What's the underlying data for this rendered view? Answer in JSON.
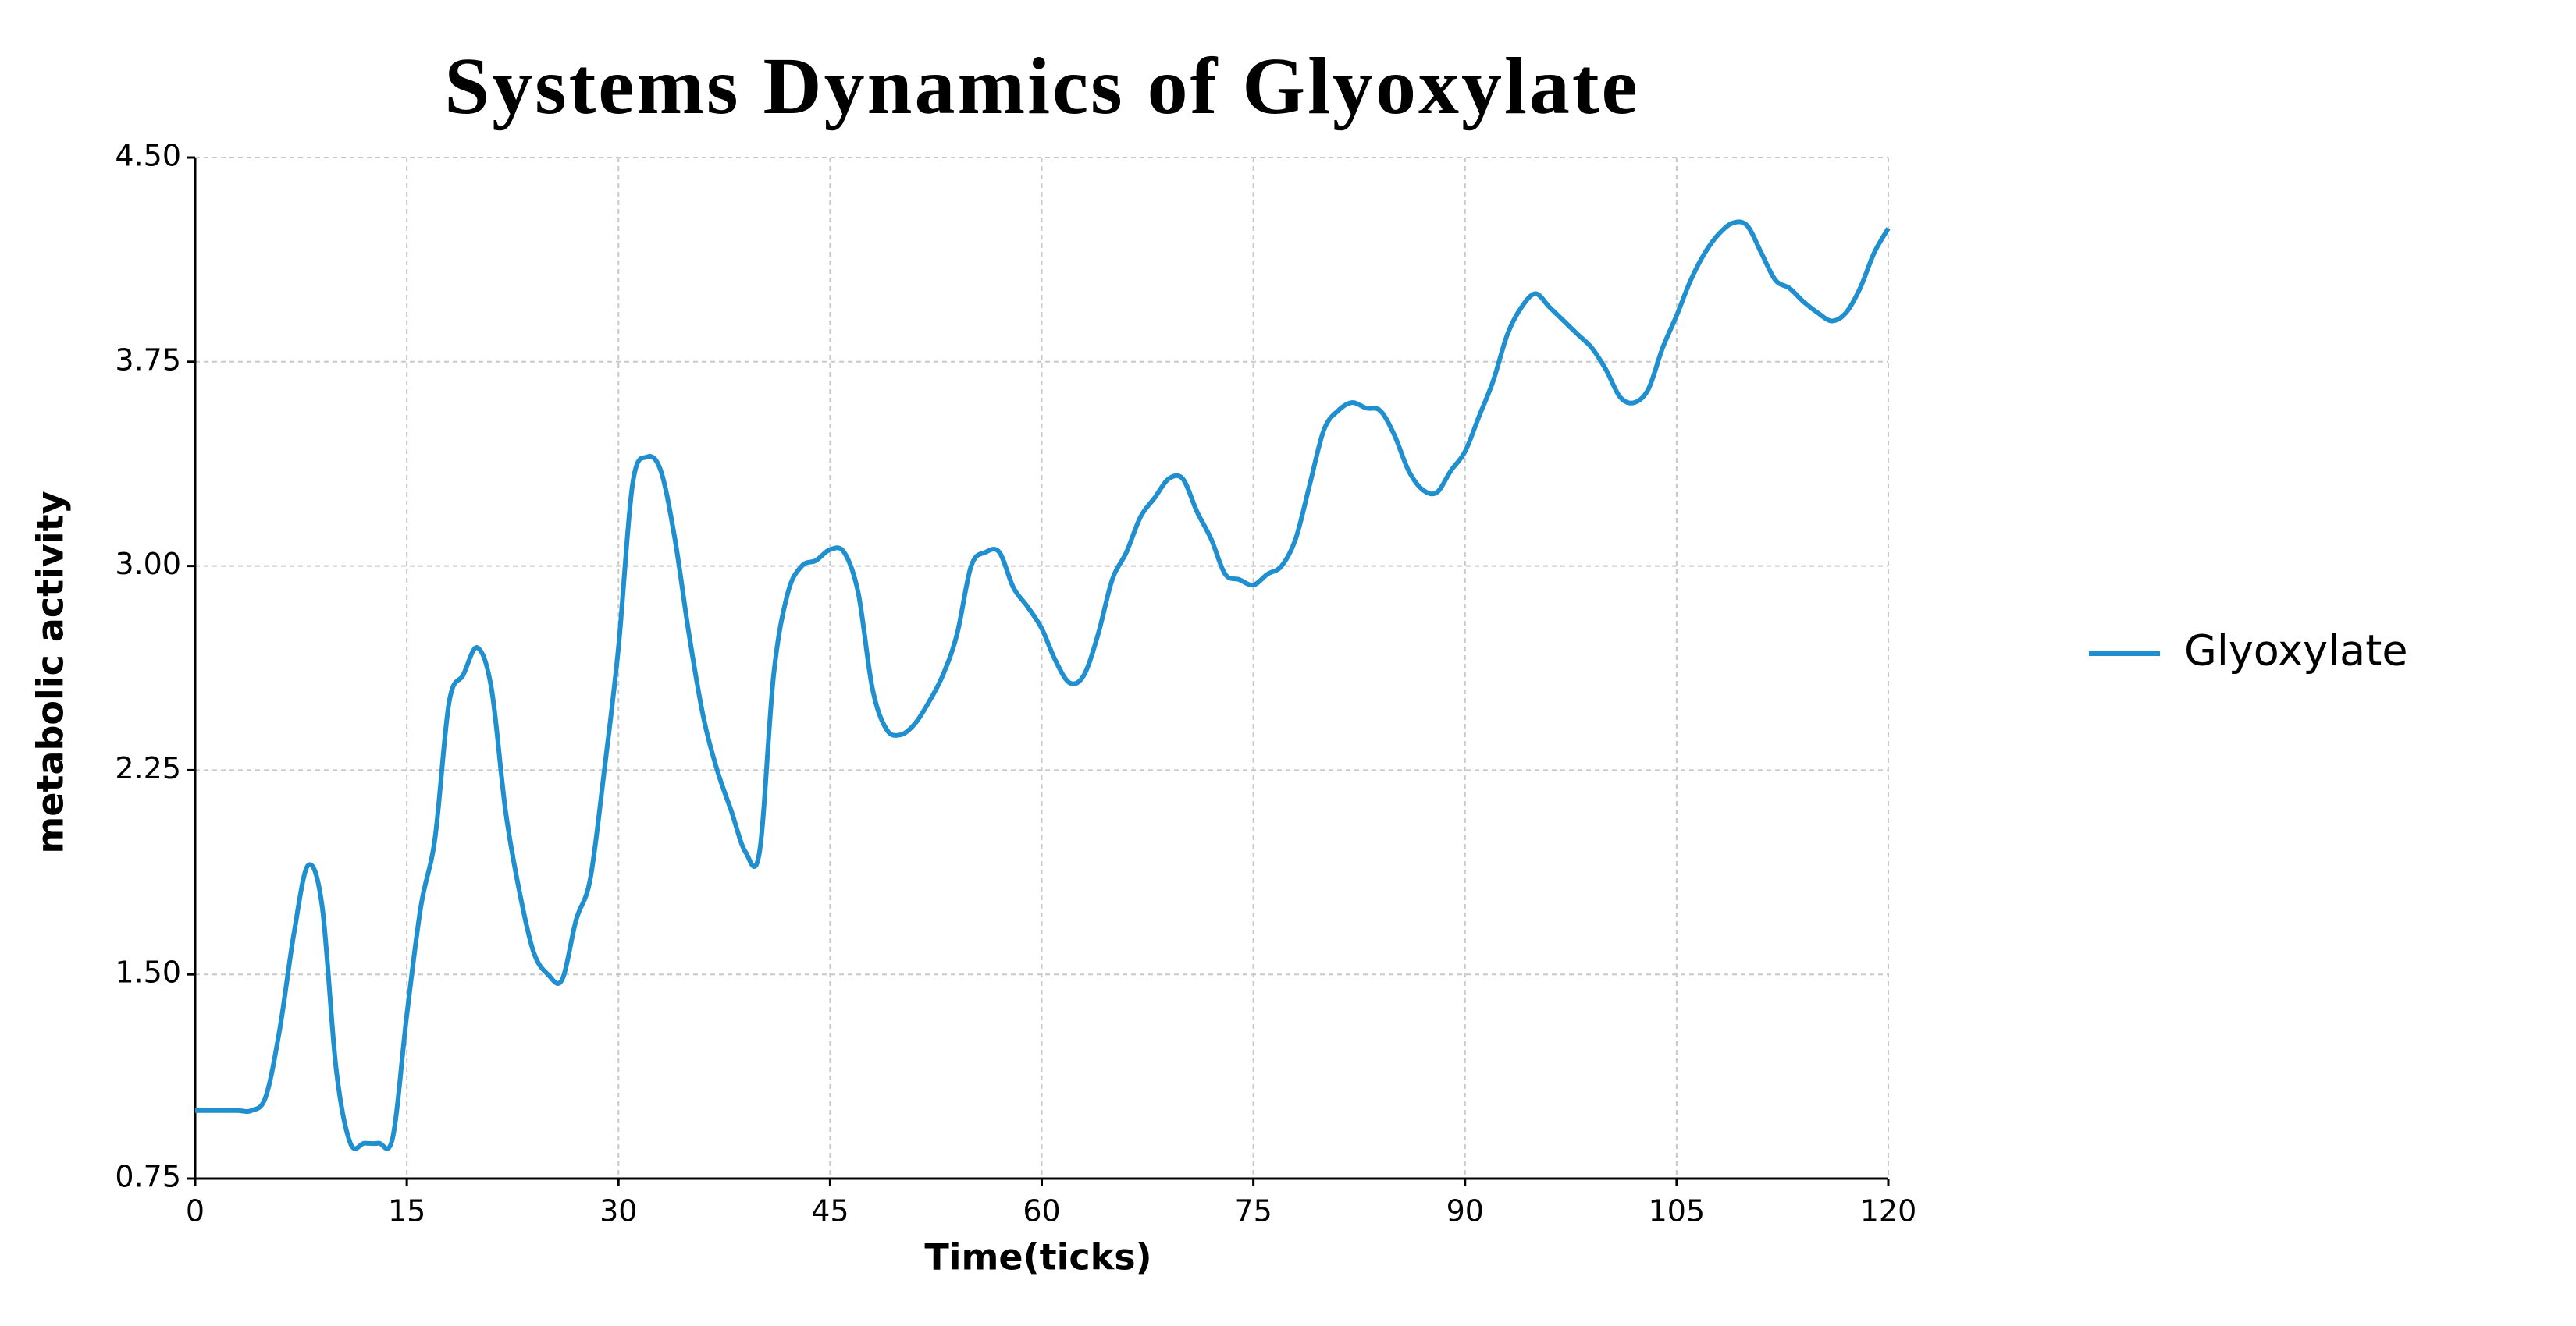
{
  "chart_data": {
    "type": "line",
    "title": "Systems Dynamics of Glyoxylate",
    "x_label": "Time(ticks)",
    "y_label": "metabolic activity",
    "x": [
      0,
      1,
      2,
      3,
      4,
      5,
      6,
      7,
      8,
      9,
      10,
      11,
      12,
      13,
      14,
      15,
      16,
      17,
      18,
      19,
      20,
      21,
      22,
      23,
      24,
      25,
      26,
      27,
      28,
      29,
      30,
      31,
      32,
      33,
      34,
      35,
      36,
      37,
      38,
      39,
      40,
      41,
      42,
      43,
      44,
      45,
      46,
      47,
      48,
      49,
      50,
      51,
      52,
      53,
      54,
      55,
      56,
      57,
      58,
      59,
      60,
      61,
      62,
      63,
      64,
      65,
      66,
      67,
      68,
      69,
      70,
      71,
      72,
      73,
      74,
      75,
      76,
      77,
      78,
      79,
      80,
      81,
      82,
      83,
      84,
      85,
      86,
      87,
      88,
      89,
      90,
      91,
      92,
      93,
      94,
      95,
      96,
      97,
      98,
      99,
      100,
      101,
      102,
      103,
      104,
      105,
      106,
      107,
      108,
      109,
      110,
      111,
      112,
      113,
      114,
      115,
      116,
      117,
      118,
      119,
      120
    ],
    "series": [
      {
        "name": "Glyoxylate",
        "color": "#1f8fcf",
        "values": [
          1.0,
          1.0,
          1.0,
          1.0,
          1.0,
          1.05,
          1.3,
          1.65,
          1.9,
          1.75,
          1.15,
          0.88,
          0.88,
          0.88,
          0.9,
          1.35,
          1.75,
          2.0,
          2.5,
          2.6,
          2.7,
          2.55,
          2.1,
          1.8,
          1.58,
          1.5,
          1.48,
          1.7,
          1.85,
          2.25,
          2.7,
          3.3,
          3.4,
          3.35,
          3.1,
          2.75,
          2.45,
          2.25,
          2.1,
          1.95,
          1.95,
          2.6,
          2.9,
          3.0,
          3.02,
          3.06,
          3.05,
          2.9,
          2.55,
          2.4,
          2.38,
          2.42,
          2.5,
          2.6,
          2.75,
          3.0,
          3.05,
          3.05,
          2.92,
          2.85,
          2.77,
          2.65,
          2.57,
          2.6,
          2.75,
          2.95,
          3.05,
          3.18,
          3.25,
          3.32,
          3.32,
          3.2,
          3.1,
          2.97,
          2.95,
          2.93,
          2.97,
          3.0,
          3.1,
          3.3,
          3.5,
          3.57,
          3.6,
          3.58,
          3.57,
          3.48,
          3.35,
          3.28,
          3.27,
          3.35,
          3.42,
          3.55,
          3.68,
          3.85,
          3.95,
          4.0,
          3.95,
          3.9,
          3.85,
          3.8,
          3.72,
          3.62,
          3.6,
          3.65,
          3.8,
          3.92,
          4.05,
          4.15,
          4.22,
          4.26,
          4.25,
          4.15,
          4.05,
          4.02,
          3.97,
          3.93,
          3.9,
          3.93,
          4.02,
          4.15,
          4.24
        ]
      }
    ],
    "xlim": [
      0,
      120
    ],
    "xticks": [
      0,
      15,
      30,
      45,
      60,
      75,
      90,
      105,
      120
    ],
    "ylim": [
      0.75,
      4.5
    ],
    "yticks": [
      0.75,
      {
        "value": 1.5,
        "label": "1.50"
      },
      2.25,
      {
        "value": 3,
        "label": "3.00"
      },
      3.75,
      {
        "value": 4.5,
        "label": "4.50"
      }
    ],
    "grid": true,
    "legend": "right"
  }
}
